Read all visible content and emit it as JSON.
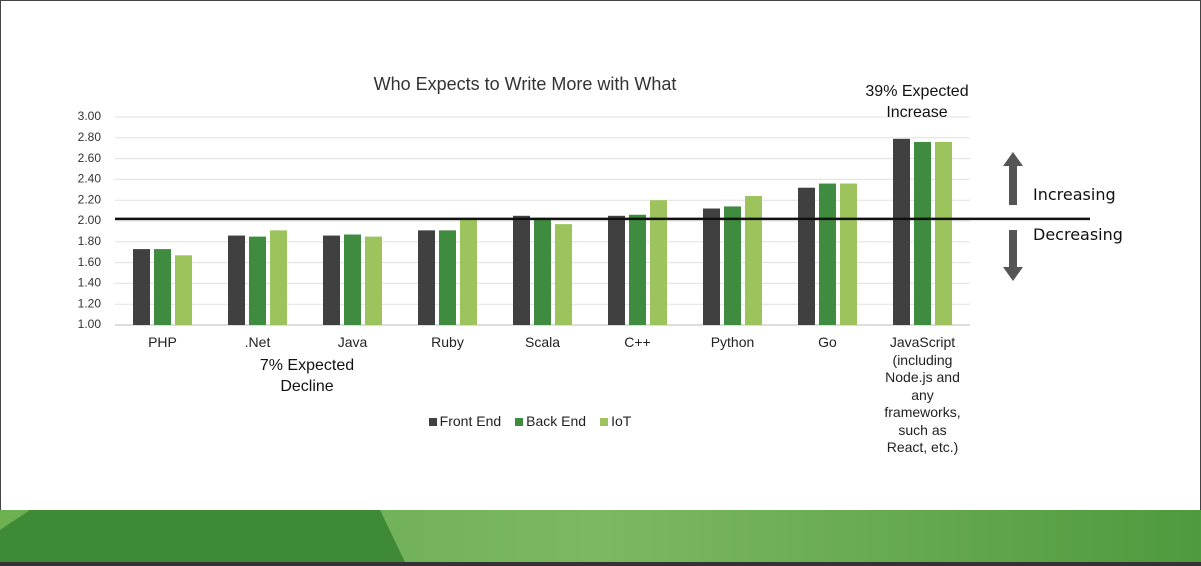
{
  "chart_data": {
    "type": "bar",
    "title": "Who Expects to Write More with What",
    "categories": [
      "PHP",
      ".Net",
      "Java",
      "Ruby",
      "Scala",
      "C++",
      "Python",
      "Go",
      "JavaScript (including Node.js and any frameworks, such as React, etc.)"
    ],
    "series": [
      {
        "name": "Front End",
        "color": "#404040",
        "values": [
          1.73,
          1.86,
          1.86,
          1.91,
          2.05,
          2.05,
          2.12,
          2.32,
          2.79
        ]
      },
      {
        "name": "Back End",
        "color": "#3f8b3f",
        "values": [
          1.73,
          1.85,
          1.87,
          1.91,
          2.03,
          2.06,
          2.14,
          2.36,
          2.76
        ]
      },
      {
        "name": "IoT",
        "color": "#9cc35c",
        "values": [
          1.67,
          1.91,
          1.85,
          2.02,
          1.97,
          2.2,
          2.24,
          2.36,
          2.76
        ]
      }
    ],
    "ylim": [
      1,
      3
    ],
    "yticks": [
      {
        "value": 1,
        "label": "1.00"
      },
      {
        "value": 1.2,
        "label": "1.20"
      },
      {
        "value": 1.4,
        "label": "1.40"
      },
      {
        "value": 1.6,
        "label": "1.60"
      },
      {
        "value": 1.8,
        "label": "1.80"
      },
      {
        "value": 2,
        "label": "2.00"
      },
      {
        "value": 2.2,
        "label": "2.20"
      },
      {
        "value": 2.4,
        "label": "2.40"
      },
      {
        "value": 2.6,
        "label": "2.60"
      },
      {
        "value": 2.8,
        "label": "2.80"
      },
      {
        "value": 3,
        "label": "3.00"
      }
    ],
    "grid": true,
    "reference_line": 2.02,
    "annotations": [
      "39% Expected Increase",
      "7% Expected Decline",
      "Increasing",
      "Decreasing"
    ]
  }
}
